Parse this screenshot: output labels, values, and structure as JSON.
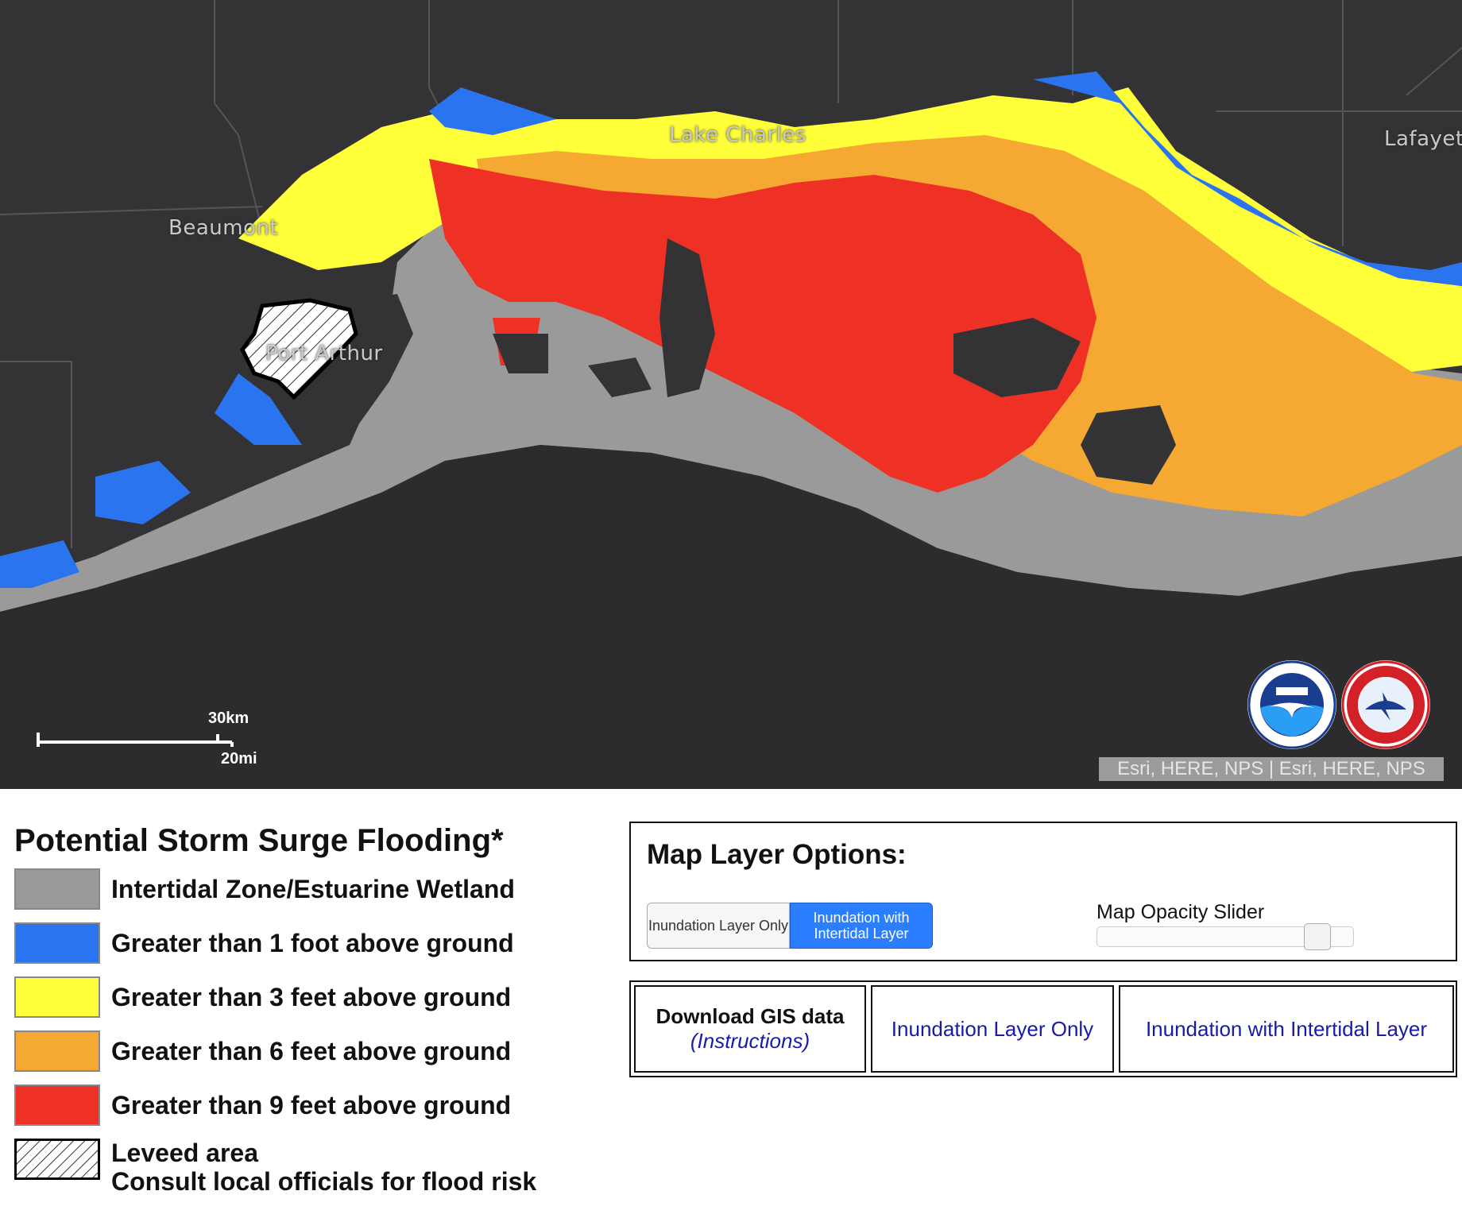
{
  "map": {
    "cities": [
      "Beaumont",
      "Lake Charles",
      "Port Arthur",
      "Lafayett"
    ],
    "scale": {
      "km_label": "30km",
      "mi_label": "20mi"
    },
    "attribution": "Esri, HERE, NPS | Esri, HERE, NPS",
    "logos": [
      "noaa-logo",
      "nws-logo"
    ]
  },
  "legend": {
    "title": "Potential Storm Surge Flooding*",
    "items": [
      {
        "label": "Intertidal Zone/Estuarine Wetland",
        "color": "#9a9a9a"
      },
      {
        "label": "Greater than 1 foot above ground",
        "color": "#2a74f0"
      },
      {
        "label": "Greater than 3 feet above ground",
        "color": "#ffff3a"
      },
      {
        "label": "Greater than 6 feet above ground",
        "color": "#f5a832"
      },
      {
        "label": "Greater than 9 feet above ground",
        "color": "#ee3124"
      }
    ],
    "levee": {
      "line1": "Leveed area",
      "line2": "Consult local officials for flood risk"
    }
  },
  "options": {
    "title": "Map Layer Options:",
    "toggle": [
      "Inundation Layer Only",
      "Inundation with Intertidal Layer"
    ],
    "active_toggle": "Inundation with Intertidal Layer",
    "slider_label": "Map Opacity Slider",
    "opacity": 0.9
  },
  "download": {
    "title": "Download GIS data",
    "instructions": "(Instructions)",
    "link1": "Inundation Layer Only",
    "link2": "Inundation with Intertidal Layer"
  }
}
